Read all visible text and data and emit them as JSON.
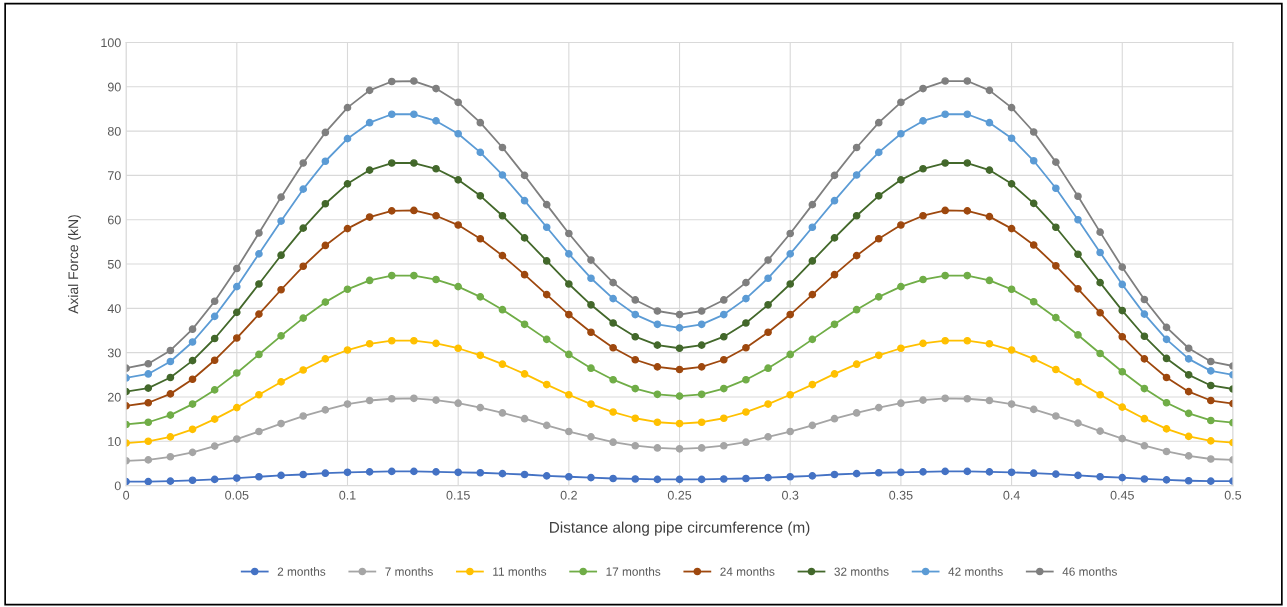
{
  "chart_data": {
    "type": "line",
    "xlabel": "Distance along pipe circumference (m)",
    "ylabel": "Axial Force (kN)",
    "x": [
      0,
      0.01,
      0.02,
      0.03,
      0.04,
      0.05,
      0.06,
      0.07,
      0.08,
      0.09,
      0.1,
      0.11,
      0.12,
      0.13,
      0.14,
      0.15,
      0.16,
      0.17,
      0.18,
      0.19,
      0.2,
      0.21,
      0.22,
      0.23,
      0.24,
      0.25,
      0.26,
      0.27,
      0.28,
      0.29,
      0.3,
      0.31,
      0.32,
      0.33,
      0.34,
      0.35,
      0.36,
      0.37,
      0.38,
      0.39,
      0.4,
      0.41,
      0.42,
      0.43,
      0.44,
      0.45,
      0.46,
      0.47,
      0.48,
      0.49,
      0.5
    ],
    "xlim": [
      0,
      0.5
    ],
    "xticks": [
      0,
      0.05,
      0.1,
      0.15,
      0.2,
      0.25,
      0.3,
      0.35,
      0.4,
      0.45,
      0.5
    ],
    "ylim": [
      0,
      100
    ],
    "yticks": [
      0,
      10,
      20,
      30,
      40,
      50,
      60,
      70,
      80,
      90,
      100
    ],
    "grid": true,
    "legend": "bottom",
    "marker": "circle",
    "line_style": "solid",
    "series": [
      {
        "name": "2 months",
        "color": "#4472c4",
        "values": [
          0.9,
          0.9,
          1.0,
          1.2,
          1.4,
          1.7,
          2.0,
          2.3,
          2.5,
          2.8,
          3.0,
          3.1,
          3.2,
          3.2,
          3.1,
          3.0,
          2.9,
          2.7,
          2.5,
          2.2,
          2.0,
          1.8,
          1.6,
          1.5,
          1.4,
          1.4,
          1.4,
          1.5,
          1.6,
          1.8,
          2.0,
          2.2,
          2.5,
          2.7,
          2.9,
          3.0,
          3.1,
          3.2,
          3.2,
          3.1,
          3.0,
          2.8,
          2.6,
          2.3,
          2.0,
          1.8,
          1.5,
          1.3,
          1.1,
          1.0,
          1.0
        ]
      },
      {
        "name": "7 months",
        "color": "#a5a5a5",
        "values": [
          5.6,
          5.8,
          6.5,
          7.5,
          8.9,
          10.5,
          12.2,
          14.0,
          15.7,
          17.1,
          18.4,
          19.2,
          19.6,
          19.7,
          19.3,
          18.6,
          17.6,
          16.4,
          15.1,
          13.6,
          12.2,
          11.0,
          9.8,
          9.0,
          8.5,
          8.3,
          8.5,
          9.0,
          9.8,
          11.0,
          12.2,
          13.6,
          15.1,
          16.4,
          17.6,
          18.6,
          19.3,
          19.7,
          19.6,
          19.2,
          18.4,
          17.2,
          15.7,
          14.1,
          12.3,
          10.6,
          9.0,
          7.7,
          6.7,
          6.0,
          5.8
        ]
      },
      {
        "name": "11 months",
        "color": "#ffc000",
        "values": [
          9.6,
          10.0,
          11.0,
          12.7,
          15.0,
          17.6,
          20.5,
          23.4,
          26.1,
          28.6,
          30.6,
          32.0,
          32.7,
          32.7,
          32.1,
          31.0,
          29.4,
          27.4,
          25.2,
          22.8,
          20.5,
          18.4,
          16.6,
          15.2,
          14.3,
          14.0,
          14.3,
          15.2,
          16.6,
          18.4,
          20.5,
          22.8,
          25.2,
          27.4,
          29.4,
          31.0,
          32.1,
          32.7,
          32.7,
          32.0,
          30.6,
          28.6,
          26.2,
          23.4,
          20.5,
          17.7,
          15.1,
          12.8,
          11.1,
          10.1,
          9.7
        ]
      },
      {
        "name": "17 months",
        "color": "#70ad47",
        "values": [
          13.8,
          14.3,
          15.9,
          18.4,
          21.6,
          25.4,
          29.6,
          33.8,
          37.8,
          41.4,
          44.3,
          46.3,
          47.4,
          47.4,
          46.5,
          44.9,
          42.6,
          39.7,
          36.4,
          33.0,
          29.6,
          26.5,
          23.9,
          21.9,
          20.6,
          20.2,
          20.6,
          21.9,
          23.9,
          26.5,
          29.6,
          33.0,
          36.4,
          39.7,
          42.6,
          44.9,
          46.5,
          47.4,
          47.4,
          46.3,
          44.3,
          41.5,
          37.9,
          34.0,
          29.8,
          25.7,
          21.9,
          18.7,
          16.3,
          14.7,
          14.2
        ]
      },
      {
        "name": "24 months",
        "color": "#9e480e",
        "values": [
          18.0,
          18.7,
          20.7,
          24.0,
          28.3,
          33.3,
          38.7,
          44.2,
          49.5,
          54.2,
          58.0,
          60.6,
          62.0,
          62.1,
          60.9,
          58.8,
          55.7,
          51.9,
          47.6,
          43.1,
          38.6,
          34.6,
          31.1,
          28.4,
          26.8,
          26.2,
          26.8,
          28.4,
          31.1,
          34.6,
          38.6,
          43.1,
          47.6,
          51.9,
          55.7,
          58.8,
          60.9,
          62.1,
          62.0,
          60.7,
          58.0,
          54.3,
          49.6,
          44.4,
          39.0,
          33.6,
          28.6,
          24.4,
          21.2,
          19.2,
          18.5
        ]
      },
      {
        "name": "32 months",
        "color": "#43682b",
        "values": [
          21.2,
          22.0,
          24.4,
          28.2,
          33.2,
          39.1,
          45.5,
          52.0,
          58.1,
          63.6,
          68.1,
          71.2,
          72.8,
          72.8,
          71.5,
          69.0,
          65.4,
          60.9,
          55.9,
          50.7,
          45.5,
          40.8,
          36.7,
          33.6,
          31.7,
          31.0,
          31.7,
          33.6,
          36.7,
          40.8,
          45.5,
          50.7,
          55.9,
          60.9,
          65.4,
          69.0,
          71.5,
          72.8,
          72.8,
          71.2,
          68.1,
          63.7,
          58.3,
          52.2,
          45.8,
          39.5,
          33.7,
          28.7,
          25.0,
          22.6,
          21.8
        ]
      },
      {
        "name": "42 months",
        "color": "#5b9bd5",
        "values": [
          24.3,
          25.2,
          28.0,
          32.4,
          38.2,
          44.9,
          52.3,
          59.7,
          66.9,
          73.2,
          78.3,
          81.9,
          83.8,
          83.8,
          82.3,
          79.4,
          75.2,
          70.1,
          64.3,
          58.3,
          52.3,
          46.8,
          42.2,
          38.6,
          36.4,
          35.6,
          36.4,
          38.6,
          42.2,
          46.8,
          52.3,
          58.3,
          64.3,
          70.1,
          75.2,
          79.4,
          82.3,
          83.8,
          83.8,
          81.9,
          78.4,
          73.3,
          67.1,
          60.0,
          52.6,
          45.4,
          38.7,
          33.0,
          28.6,
          25.9,
          25.0
        ]
      },
      {
        "name": "46 months",
        "color": "#7f7f7f",
        "values": [
          26.5,
          27.5,
          30.5,
          35.3,
          41.6,
          49.0,
          57.0,
          65.1,
          72.8,
          79.7,
          85.3,
          89.2,
          91.2,
          91.3,
          89.6,
          86.5,
          81.9,
          76.3,
          70.0,
          63.4,
          56.9,
          50.9,
          45.8,
          41.9,
          39.4,
          38.6,
          39.4,
          41.9,
          45.8,
          50.9,
          56.9,
          63.4,
          70.0,
          76.3,
          81.9,
          86.5,
          89.6,
          91.3,
          91.3,
          89.2,
          85.3,
          79.8,
          73.0,
          65.3,
          57.2,
          49.3,
          42.0,
          35.7,
          31.0,
          28.0,
          27.0
        ]
      }
    ]
  }
}
